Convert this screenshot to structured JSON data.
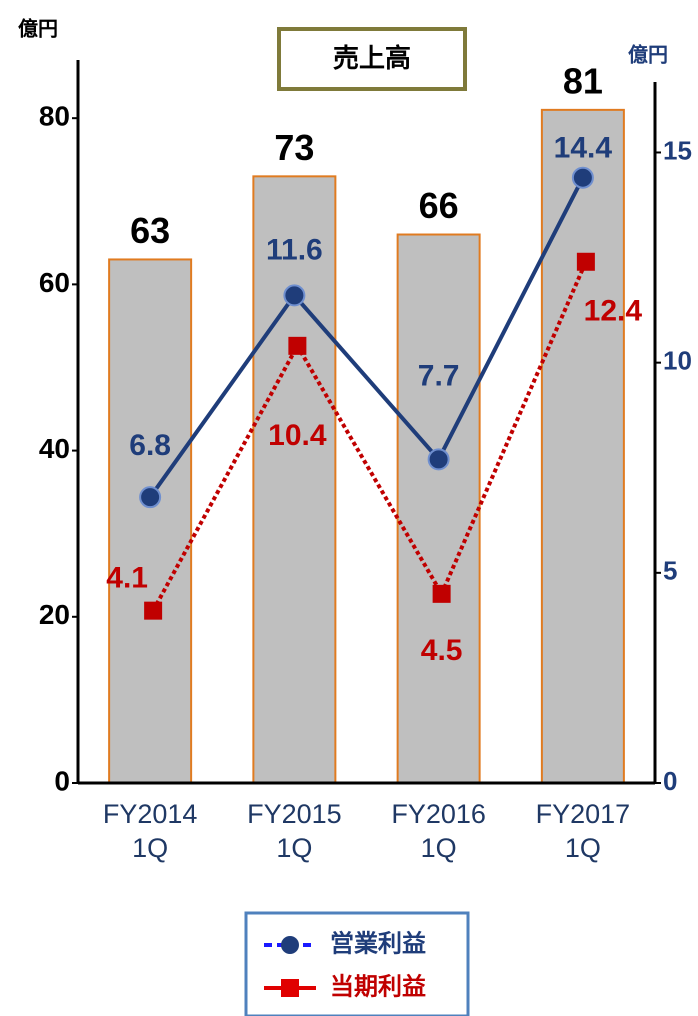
{
  "chart_data": {
    "type": "bar",
    "title": "売上高",
    "y_unit": "億円",
    "y2_unit": "億円",
    "categories": [
      "FY2014\n1Q",
      "FY2015\n1Q",
      "FY2016\n1Q",
      "FY2017\n1Q"
    ],
    "values": [
      63,
      73,
      66,
      81
    ],
    "color": "#bfbfbf",
    "edge_color": "#e07b20",
    "ylim": [
      0,
      87
    ],
    "yticks": [
      0,
      20,
      40,
      60,
      80
    ],
    "y2lim": [
      0,
      17.2
    ],
    "y2ticks": [
      0,
      5,
      10,
      15
    ],
    "series": [
      {
        "name": "営業利益",
        "type": "line",
        "axis": "y2",
        "color": "#1f3d7a",
        "marker": "circle",
        "linestyle": "solid",
        "values": [
          6.8,
          11.6,
          7.7,
          14.4
        ]
      },
      {
        "name": "当期利益",
        "type": "line",
        "axis": "y2",
        "color": "#c00000",
        "marker": "square",
        "linestyle": "dotted",
        "values": [
          4.1,
          10.4,
          4.5,
          12.4
        ]
      }
    ]
  }
}
